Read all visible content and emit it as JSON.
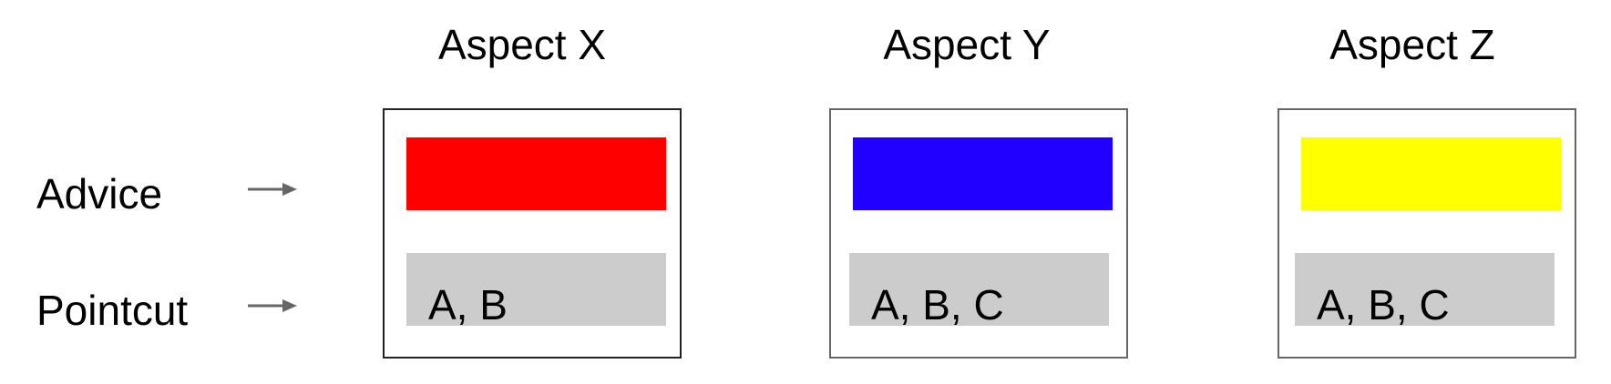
{
  "row_labels": {
    "advice": "Advice",
    "pointcut": "Pointcut"
  },
  "arrow_color": "#666666",
  "aspects": [
    {
      "title": "Aspect X",
      "advice_color": "#ff0000",
      "pointcut": "A, B"
    },
    {
      "title": "Aspect Y",
      "advice_color": "#2200ff",
      "pointcut": "A, B, C"
    },
    {
      "title": "Aspect Z",
      "advice_color": "#ffff00",
      "pointcut": "A, B, C"
    }
  ]
}
